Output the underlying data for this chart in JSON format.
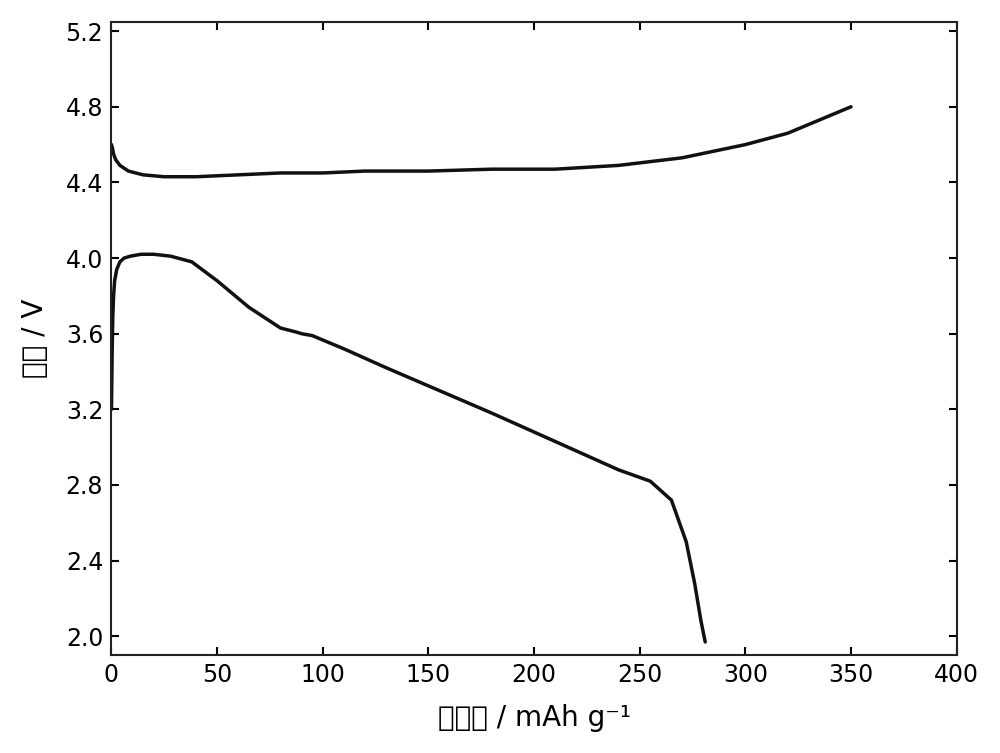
{
  "title": "",
  "xlabel": "比容量 / mAh g⁻¹",
  "ylabel": "电压 / V",
  "xlim": [
    0,
    400
  ],
  "ylim": [
    1.9,
    5.25
  ],
  "xticks": [
    0,
    50,
    100,
    150,
    200,
    250,
    300,
    350,
    400
  ],
  "yticks": [
    2.0,
    2.4,
    2.8,
    3.2,
    3.6,
    4.0,
    4.4,
    4.8,
    5.2
  ],
  "background_color": "#ffffff",
  "line_color": "#111111",
  "line_width": 2.5,
  "charge_curve": {
    "x": [
      0.0,
      0.5,
      1.0,
      2.0,
      4.0,
      8.0,
      15.0,
      25.0,
      40.0,
      60.0,
      80.0,
      90.0,
      95.0,
      100.0,
      120.0,
      150.0,
      180.0,
      210.0,
      240.0,
      270.0,
      300.0,
      320.0,
      335.0,
      350.0
    ],
    "y": [
      4.6,
      4.58,
      4.55,
      4.52,
      4.49,
      4.46,
      4.44,
      4.43,
      4.43,
      4.44,
      4.45,
      4.45,
      4.45,
      4.45,
      4.46,
      4.46,
      4.47,
      4.47,
      4.49,
      4.53,
      4.6,
      4.66,
      4.73,
      4.8
    ]
  },
  "discharge_curve": {
    "x": [
      0.0,
      0.3,
      0.6,
      1.0,
      1.5,
      2.5,
      4.0,
      6.0,
      9.0,
      14.0,
      20.0,
      28.0,
      38.0,
      50.0,
      65.0,
      80.0,
      87.0,
      90.0,
      95.0,
      110.0,
      130.0,
      155.0,
      180.0,
      200.0,
      220.0,
      240.0,
      255.0,
      265.0,
      272.0,
      276.0,
      279.0,
      281.0
    ],
    "y": [
      3.2,
      3.48,
      3.68,
      3.8,
      3.88,
      3.94,
      3.98,
      4.0,
      4.01,
      4.02,
      4.02,
      4.01,
      3.98,
      3.88,
      3.74,
      3.63,
      3.61,
      3.6,
      3.59,
      3.52,
      3.42,
      3.3,
      3.18,
      3.08,
      2.98,
      2.88,
      2.82,
      2.72,
      2.5,
      2.28,
      2.08,
      1.97
    ]
  }
}
